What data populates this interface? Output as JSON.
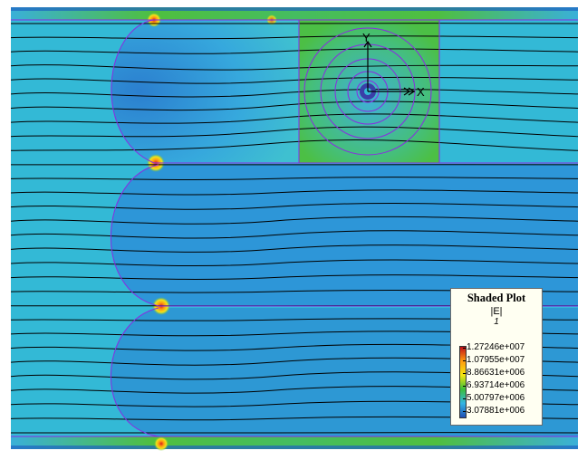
{
  "plot": {
    "axis_y_label": "Y",
    "axis_x_label": "X"
  },
  "legend": {
    "title": "Shaded Plot",
    "quantity": "|E|",
    "frame": "1",
    "values": [
      "1.27246e+007",
      "1.07955e+007",
      "8.86631e+006",
      "6.93714e+006",
      "5.00797e+006",
      "3.07881e+006"
    ],
    "scale_colors": [
      "#c0101a",
      "#ff9a10",
      "#f4e610",
      "#3bbf3a",
      "#33b5e4",
      "#1f4fb5"
    ]
  },
  "colors": {
    "field_background": "#33b9d6",
    "field_line": "#000000",
    "boundary": "#8a2be2"
  }
}
